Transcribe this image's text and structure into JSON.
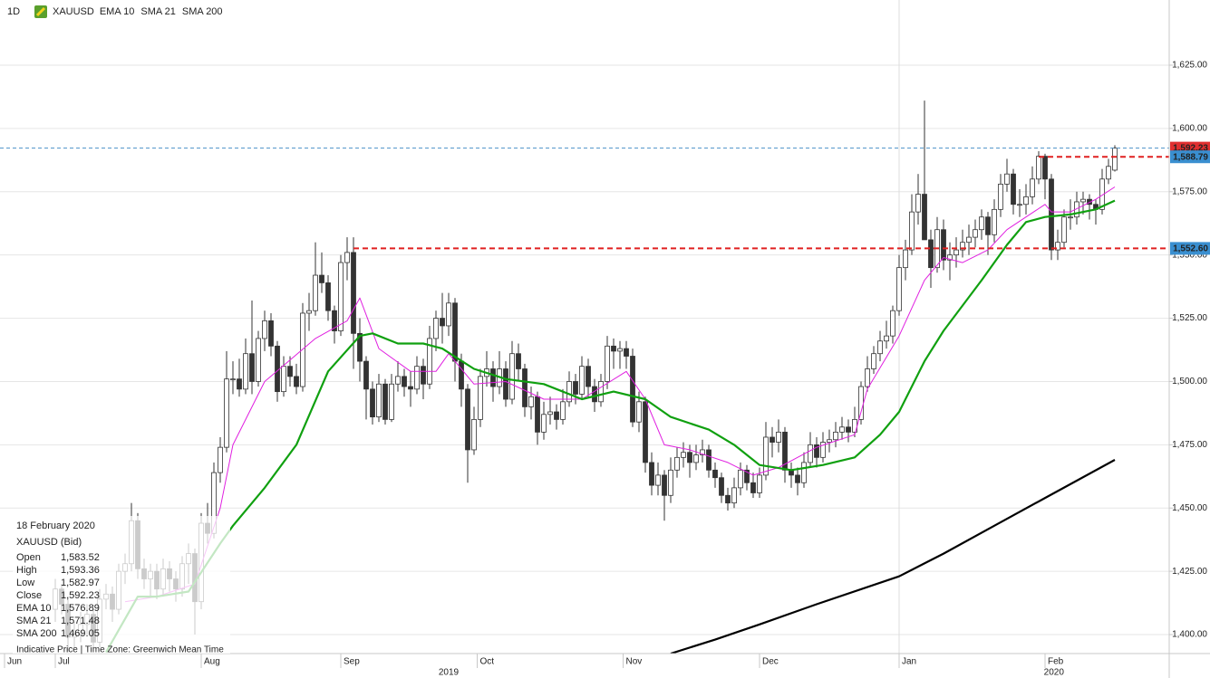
{
  "chart_data": {
    "type": "candlestick",
    "timeframe": "1D",
    "symbol": "XAUUSD",
    "xlim": [
      -8.714,
      175.571
    ],
    "ylim": [
      1392.5,
      1650.75
    ],
    "grid": true,
    "vgrid_at": 133,
    "xticks": [
      {
        "value": -8,
        "label": "Jun"
      },
      {
        "value": 0,
        "label": "Jul"
      },
      {
        "value": 23,
        "label": "Aug"
      },
      {
        "value": 45,
        "label": "Sep"
      },
      {
        "value": 66.5,
        "label": "Oct"
      },
      {
        "value": 89.5,
        "label": "Nov"
      },
      {
        "value": 111,
        "label": "Dec"
      },
      {
        "value": 133,
        "label": "Jan"
      },
      {
        "value": 156,
        "label": "Feb"
      }
    ],
    "year_labels": [
      {
        "value": 62,
        "label": "2019"
      },
      {
        "value": 157.4,
        "label": "2020"
      }
    ],
    "yticks": [
      {
        "value": 1400,
        "label": "1,400.00"
      },
      {
        "value": 1425,
        "label": "1,425.00"
      },
      {
        "value": 1450,
        "label": "1,450.00"
      },
      {
        "value": 1475,
        "label": "1,475.00"
      },
      {
        "value": 1500,
        "label": "1,500.00"
      },
      {
        "value": 1525,
        "label": "1,525.00"
      },
      {
        "value": 1550,
        "label": "1,550.00"
      },
      {
        "value": 1575,
        "label": "1,575.00"
      },
      {
        "value": 1600,
        "label": "1,600.00"
      },
      {
        "value": 1625,
        "label": "1,625.00"
      }
    ],
    "up_color": "#ffffff",
    "down_color": "#333333",
    "ohlc": [
      [
        1410,
        1422,
        1405,
        1418
      ],
      [
        1418,
        1420,
        1408,
        1412
      ],
      [
        1412,
        1415,
        1393,
        1399
      ],
      [
        1399,
        1405,
        1395,
        1400
      ],
      [
        1400,
        1409,
        1397,
        1404
      ],
      [
        1404,
        1412,
        1400,
        1408
      ],
      [
        1408,
        1410,
        1393,
        1397
      ],
      [
        1397,
        1418,
        1395,
        1414
      ],
      [
        1414,
        1420,
        1410,
        1416
      ],
      [
        1416,
        1419,
        1405,
        1410
      ],
      [
        1410,
        1428,
        1408,
        1425
      ],
      [
        1425,
        1432,
        1420,
        1428
      ],
      [
        1428,
        1452,
        1425,
        1445
      ],
      [
        1445,
        1448,
        1422,
        1426
      ],
      [
        1426,
        1430,
        1418,
        1422
      ],
      [
        1422,
        1428,
        1415,
        1425
      ],
      [
        1425,
        1428,
        1414,
        1418
      ],
      [
        1418,
        1430,
        1415,
        1426
      ],
      [
        1426,
        1429,
        1417,
        1422
      ],
      [
        1422,
        1425,
        1413,
        1418
      ],
      [
        1418,
        1431,
        1415,
        1428
      ],
      [
        1428,
        1436,
        1420,
        1432
      ],
      [
        1432,
        1434,
        1400,
        1413
      ],
      [
        1413,
        1448,
        1410,
        1444
      ],
      [
        1444,
        1452,
        1436,
        1440
      ],
      [
        1440,
        1468,
        1438,
        1464
      ],
      [
        1464,
        1478,
        1460,
        1474
      ],
      [
        1474,
        1512,
        1472,
        1501
      ],
      [
        1501,
        1508,
        1495,
        1501
      ],
      [
        1501,
        1509,
        1494,
        1497
      ],
      [
        1497,
        1517,
        1495,
        1511
      ],
      [
        1511,
        1532,
        1495,
        1500
      ],
      [
        1500,
        1520,
        1498,
        1517
      ],
      [
        1517,
        1528,
        1512,
        1524
      ],
      [
        1524,
        1527,
        1510,
        1514
      ],
      [
        1514,
        1516,
        1492,
        1496
      ],
      [
        1496,
        1510,
        1494,
        1506
      ],
      [
        1506,
        1510,
        1498,
        1502
      ],
      [
        1502,
        1507,
        1495,
        1498
      ],
      [
        1498,
        1531,
        1496,
        1527
      ],
      [
        1527,
        1535,
        1520,
        1528
      ],
      [
        1528,
        1555,
        1526,
        1542
      ],
      [
        1542,
        1551,
        1535,
        1539
      ],
      [
        1539,
        1542,
        1524,
        1528
      ],
      [
        1528,
        1530,
        1515,
        1520
      ],
      [
        1520,
        1550,
        1518,
        1547
      ],
      [
        1547,
        1557,
        1540,
        1551
      ],
      [
        1551,
        1557,
        1505,
        1519
      ],
      [
        1519,
        1525,
        1500,
        1508
      ],
      [
        1508,
        1510,
        1485,
        1497
      ],
      [
        1497,
        1500,
        1483,
        1486
      ],
      [
        1486,
        1503,
        1484,
        1499
      ],
      [
        1499,
        1501,
        1483,
        1485
      ],
      [
        1485,
        1503,
        1484,
        1499
      ],
      [
        1499,
        1508,
        1496,
        1502
      ],
      [
        1502,
        1505,
        1494,
        1498
      ],
      [
        1498,
        1504,
        1490,
        1497
      ],
      [
        1497,
        1510,
        1495,
        1506
      ],
      [
        1506,
        1509,
        1493,
        1499
      ],
      [
        1499,
        1522,
        1497,
        1517
      ],
      [
        1517,
        1528,
        1512,
        1525
      ],
      [
        1525,
        1535,
        1515,
        1522
      ],
      [
        1522,
        1535,
        1518,
        1531
      ],
      [
        1531,
        1533,
        1500,
        1508
      ],
      [
        1508,
        1511,
        1490,
        1497
      ],
      [
        1497,
        1499,
        1460,
        1473
      ],
      [
        1473,
        1490,
        1471,
        1485
      ],
      [
        1485,
        1505,
        1482,
        1502
      ],
      [
        1502,
        1512,
        1498,
        1505
      ],
      [
        1505,
        1508,
        1492,
        1498
      ],
      [
        1498,
        1512,
        1495,
        1505
      ],
      [
        1505,
        1508,
        1490,
        1493
      ],
      [
        1493,
        1516,
        1491,
        1511
      ],
      [
        1511,
        1515,
        1500,
        1505
      ],
      [
        1505,
        1507,
        1486,
        1490
      ],
      [
        1490,
        1498,
        1485,
        1494
      ],
      [
        1494,
        1496,
        1475,
        1480
      ],
      [
        1480,
        1492,
        1477,
        1487
      ],
      [
        1487,
        1494,
        1483,
        1488
      ],
      [
        1488,
        1491,
        1481,
        1485
      ],
      [
        1485,
        1497,
        1483,
        1492
      ],
      [
        1492,
        1504,
        1490,
        1500
      ],
      [
        1500,
        1503,
        1491,
        1495
      ],
      [
        1495,
        1510,
        1493,
        1506
      ],
      [
        1506,
        1509,
        1494,
        1498
      ],
      [
        1498,
        1501,
        1488,
        1492
      ],
      [
        1492,
        1503,
        1490,
        1500
      ],
      [
        1500,
        1518,
        1497,
        1514
      ],
      [
        1514,
        1517,
        1505,
        1512
      ],
      [
        1512,
        1516,
        1505,
        1513
      ],
      [
        1513,
        1516,
        1505,
        1510
      ],
      [
        1510,
        1513,
        1482,
        1484
      ],
      [
        1484,
        1496,
        1480,
        1492
      ],
      [
        1492,
        1494,
        1464,
        1468
      ],
      [
        1468,
        1472,
        1455,
        1459
      ],
      [
        1459,
        1468,
        1455,
        1463
      ],
      [
        1463,
        1465,
        1445,
        1455
      ],
      [
        1455,
        1470,
        1452,
        1465
      ],
      [
        1465,
        1474,
        1462,
        1470
      ],
      [
        1470,
        1476,
        1466,
        1472
      ],
      [
        1472,
        1475,
        1462,
        1468
      ],
      [
        1468,
        1475,
        1465,
        1471
      ],
      [
        1471,
        1477,
        1468,
        1473
      ],
      [
        1473,
        1475,
        1462,
        1465
      ],
      [
        1465,
        1468,
        1458,
        1462
      ],
      [
        1462,
        1464,
        1452,
        1455
      ],
      [
        1455,
        1458,
        1449,
        1452
      ],
      [
        1452,
        1462,
        1450,
        1458
      ],
      [
        1458,
        1468,
        1455,
        1465
      ],
      [
        1465,
        1467,
        1457,
        1460
      ],
      [
        1460,
        1464,
        1454,
        1456
      ],
      [
        1456,
        1466,
        1454,
        1463
      ],
      [
        1463,
        1484,
        1461,
        1478
      ],
      [
        1478,
        1482,
        1470,
        1476
      ],
      [
        1476,
        1485,
        1472,
        1480
      ],
      [
        1480,
        1482,
        1460,
        1465
      ],
      [
        1465,
        1468,
        1458,
        1463
      ],
      [
        1463,
        1466,
        1455,
        1460
      ],
      [
        1460,
        1472,
        1458,
        1468
      ],
      [
        1468,
        1480,
        1466,
        1475
      ],
      [
        1475,
        1478,
        1466,
        1470
      ],
      [
        1470,
        1480,
        1468,
        1476
      ],
      [
        1476,
        1481,
        1472,
        1477
      ],
      [
        1477,
        1484,
        1474,
        1480
      ],
      [
        1480,
        1486,
        1477,
        1482
      ],
      [
        1482,
        1485,
        1476,
        1480
      ],
      [
        1480,
        1490,
        1478,
        1485
      ],
      [
        1485,
        1500,
        1483,
        1498
      ],
      [
        1498,
        1510,
        1496,
        1505
      ],
      [
        1505,
        1514,
        1503,
        1511
      ],
      [
        1511,
        1520,
        1508,
        1516
      ],
      [
        1516,
        1524,
        1513,
        1518
      ],
      [
        1518,
        1530,
        1515,
        1528
      ],
      [
        1528,
        1550,
        1526,
        1545
      ],
      [
        1545,
        1556,
        1540,
        1552
      ],
      [
        1552,
        1574,
        1550,
        1567
      ],
      [
        1567,
        1582,
        1562,
        1574
      ],
      [
        1574,
        1611,
        1556,
        1556
      ],
      [
        1556,
        1560,
        1537,
        1545
      ],
      [
        1545,
        1565,
        1543,
        1560
      ],
      [
        1560,
        1564,
        1544,
        1548
      ],
      [
        1548,
        1555,
        1540,
        1550
      ],
      [
        1550,
        1557,
        1545,
        1552
      ],
      [
        1552,
        1560,
        1549,
        1555
      ],
      [
        1555,
        1562,
        1550,
        1557
      ],
      [
        1557,
        1564,
        1553,
        1560
      ],
      [
        1560,
        1568,
        1556,
        1565
      ],
      [
        1565,
        1567,
        1550,
        1558
      ],
      [
        1558,
        1572,
        1555,
        1568
      ],
      [
        1568,
        1582,
        1565,
        1578
      ],
      [
        1578,
        1588,
        1575,
        1582
      ],
      [
        1582,
        1584,
        1566,
        1570
      ],
      [
        1570,
        1576,
        1565,
        1570
      ],
      [
        1570,
        1578,
        1566,
        1573
      ],
      [
        1573,
        1585,
        1570,
        1580
      ],
      [
        1580,
        1591,
        1578,
        1589
      ],
      [
        1589,
        1590,
        1572,
        1580
      ],
      [
        1580,
        1582,
        1548,
        1552
      ],
      [
        1552,
        1560,
        1548,
        1555
      ],
      [
        1555,
        1568,
        1553,
        1565
      ],
      [
        1565,
        1572,
        1560,
        1565
      ],
      [
        1565,
        1575,
        1562,
        1571
      ],
      [
        1571,
        1575,
        1566,
        1572
      ],
      [
        1572,
        1574,
        1564,
        1570
      ],
      [
        1570,
        1572,
        1562,
        1568
      ],
      [
        1568,
        1584,
        1566,
        1580
      ],
      [
        1580,
        1588,
        1578,
        1585
      ],
      [
        1583.52,
        1593.36,
        1582.97,
        1592.23
      ]
    ],
    "indicators": [
      {
        "name": "EMA 10",
        "color": "#e020e0",
        "width": 1,
        "x": [
          11,
          16,
          22,
          26,
          28,
          33,
          41,
          46,
          48,
          51,
          56,
          60,
          62,
          66,
          71,
          77,
          83,
          90,
          93,
          96,
          100,
          106,
          110,
          114,
          120,
          126,
          128,
          133,
          137,
          140,
          143,
          147,
          150,
          153,
          156,
          157,
          160,
          164,
          167
        ],
        "values": [
          1413,
          1415,
          1420,
          1450,
          1475,
          1500,
          1517,
          1524,
          1533,
          1513,
          1504,
          1504,
          1511,
          1499,
          1500,
          1493,
          1493,
          1504,
          1493,
          1475,
          1473,
          1468,
          1463,
          1466,
          1474,
          1479,
          1497,
          1518,
          1540,
          1549,
          1547,
          1552,
          1560,
          1565,
          1570,
          1567,
          1567,
          1572,
          1576.89
        ]
      },
      {
        "name": "SMA 21",
        "color": "#10a010",
        "width": 2.2,
        "x": [
          8,
          13,
          16,
          21,
          26,
          28,
          33,
          38,
          43,
          48,
          50,
          54,
          58,
          61,
          66,
          71,
          77,
          83,
          88,
          93,
          97,
          103,
          107,
          111,
          116,
          121,
          126,
          130,
          133,
          137,
          140,
          146,
          150,
          153,
          156,
          160,
          164,
          167
        ],
        "values": [
          1393,
          1415,
          1415,
          1417,
          1436,
          1443,
          1458,
          1475,
          1504,
          1518,
          1519,
          1515,
          1515,
          1513,
          1505,
          1501,
          1499,
          1493,
          1496,
          1493,
          1486,
          1481,
          1475,
          1467,
          1465,
          1467,
          1470,
          1479,
          1488,
          1508,
          1520,
          1540,
          1554,
          1563,
          1565,
          1566,
          1568,
          1571.48
        ]
      },
      {
        "name": "SMA 200",
        "color": "#000000",
        "width": 2.2,
        "x": [
          97,
          104,
          111,
          120,
          133,
          140,
          148,
          156,
          167
        ],
        "values": [
          1392.5,
          1398,
          1404,
          1412,
          1423,
          1432,
          1443,
          1454,
          1469.05
        ]
      }
    ],
    "levels": [
      {
        "value": 1592.23,
        "label": "1,592.23",
        "from": -8.714,
        "line_color": "#4a90c8",
        "tag_color": "#e03030"
      },
      {
        "value": 1588.79,
        "label": "1,588.79",
        "from": 155,
        "line_color": "#e02020",
        "tag_color": "#3a8fd0"
      },
      {
        "value": 1552.6,
        "label": "1,552.60",
        "from": 47,
        "line_color": "#e02020",
        "tag_color": "#3a8fd0"
      }
    ],
    "info": {
      "date": "18 February 2020",
      "instrument": "XAUUSD (Bid)",
      "rows": [
        {
          "label": "Open",
          "value": "1,583.52",
          "color": "#222222"
        },
        {
          "label": "High",
          "value": "1,593.36",
          "color": "#222222"
        },
        {
          "label": "Low",
          "value": "1,582.97",
          "color": "#222222"
        },
        {
          "label": "Close",
          "value": "1,592.23",
          "color": "#222222"
        },
        {
          "label": "EMA 10",
          "value": "1,576.89",
          "color": "#e020e0"
        },
        {
          "label": "SMA 21",
          "value": "1,571.48",
          "color": "#10a010"
        },
        {
          "label": "SMA 200",
          "value": "1,469.05",
          "color": "#222222"
        }
      ],
      "footer": "Indicative Price | Time Zone: Greenwich Mean Time"
    }
  }
}
